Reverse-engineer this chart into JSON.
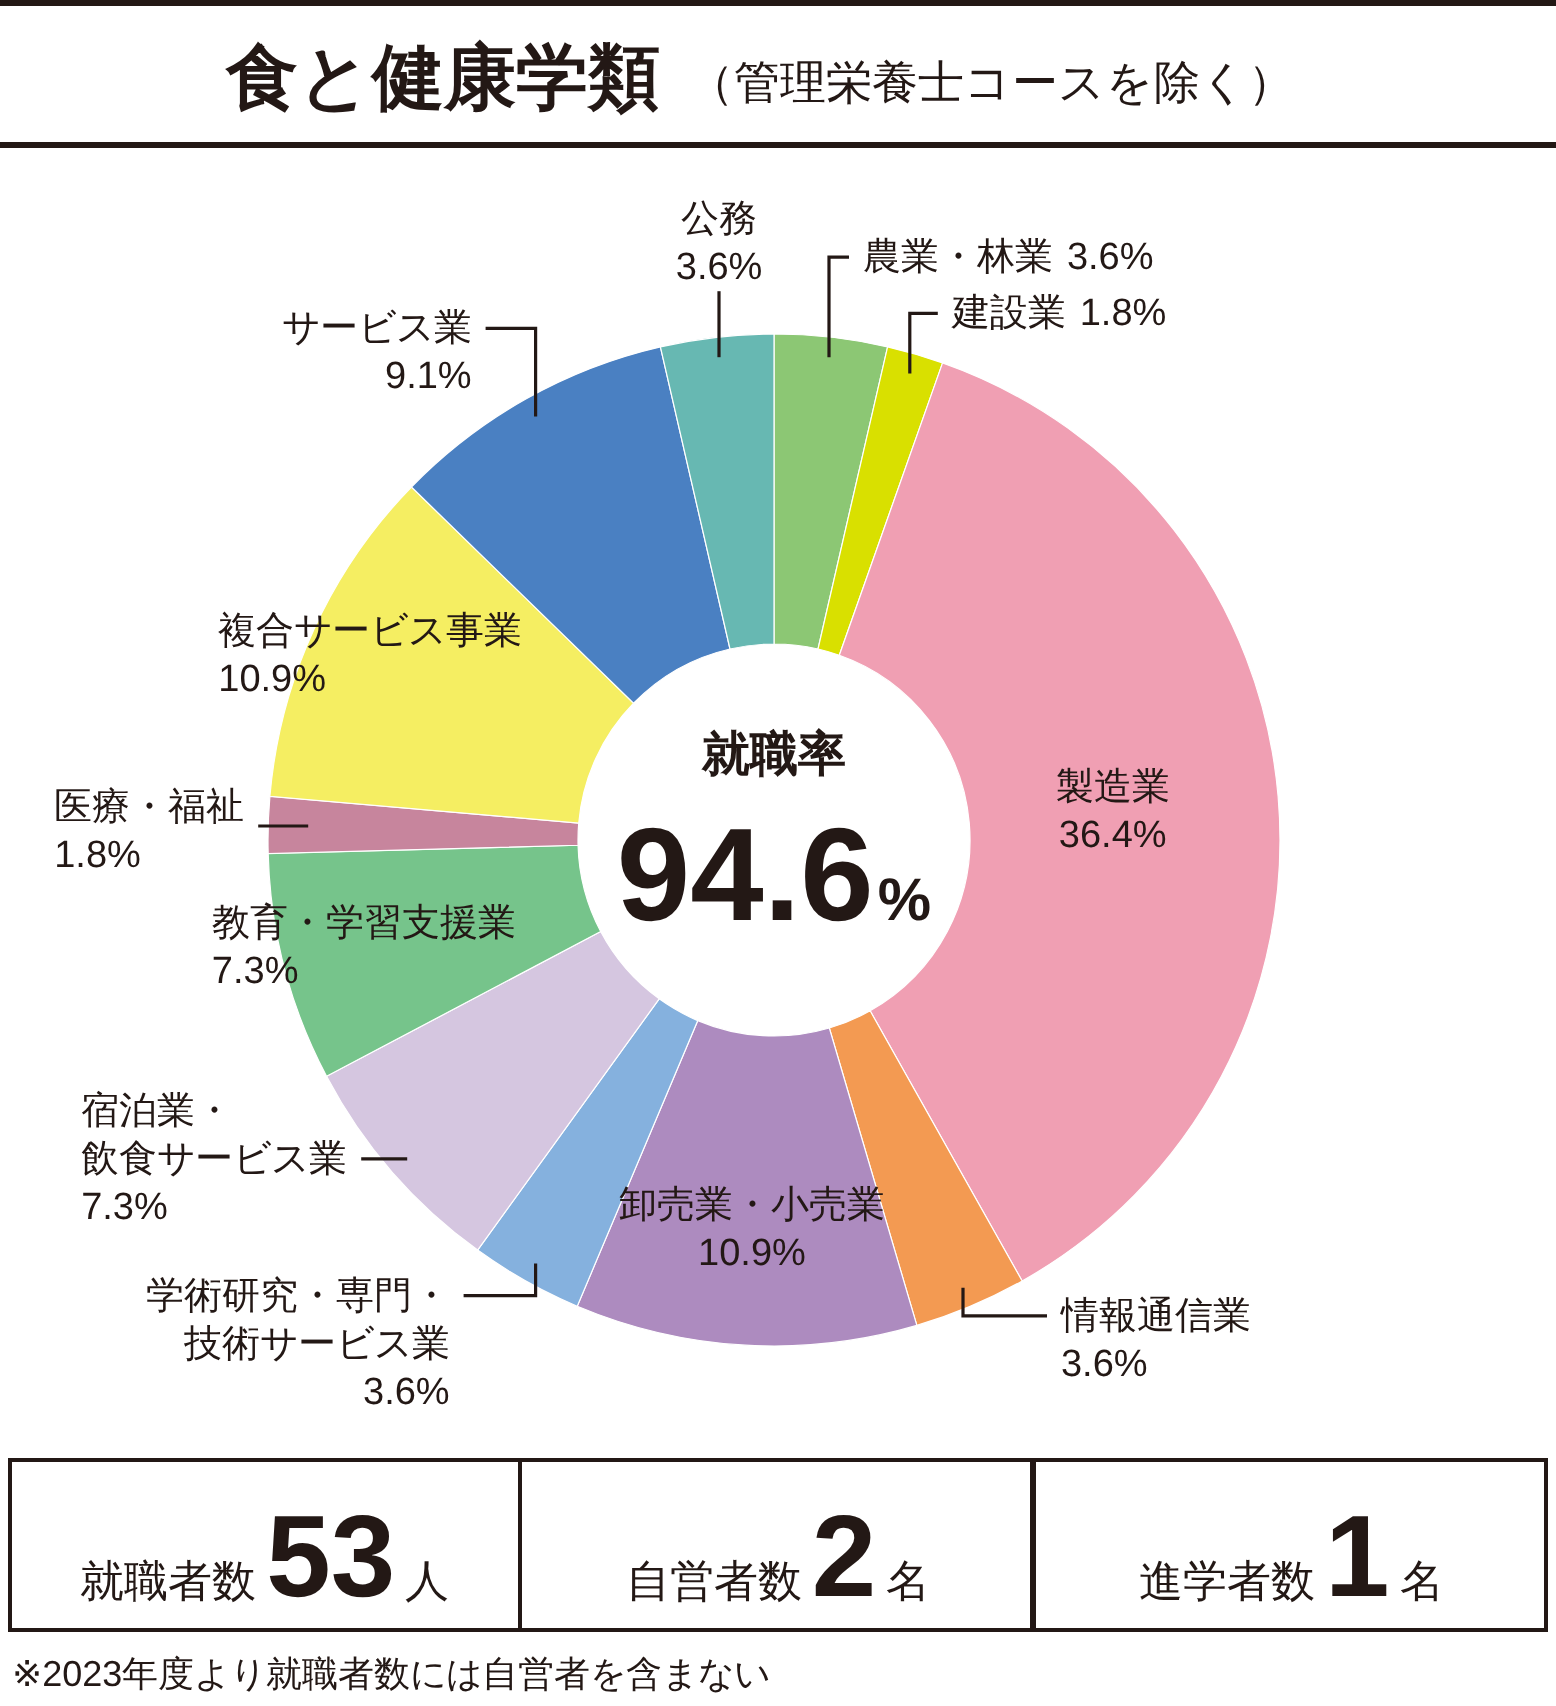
{
  "chart_data": {
    "type": "donut",
    "title": "食と健康学類",
    "subtitle": "（管理栄養士コースを除く）",
    "categories": [
      "農業・林業",
      "建設業",
      "製造業",
      "情報通信業",
      "卸売業・小売業",
      "学術研究・専門・技術サービス業",
      "宿泊業・飲食サービス業",
      "教育・学習支援業",
      "医療・福祉",
      "複合サービス事業",
      "サービス業",
      "公務"
    ],
    "values": [
      3.6,
      1.8,
      36.4,
      3.6,
      10.9,
      3.6,
      7.3,
      7.3,
      1.8,
      10.9,
      9.1,
      3.6
    ],
    "value_labels": [
      "3.6%",
      "1.8%",
      "36.4%",
      "3.6%",
      "10.9%",
      "3.6%",
      "7.3%",
      "7.3%",
      "1.8%",
      "10.9%",
      "9.1%",
      "3.6%"
    ],
    "colors": [
      "#8cc774",
      "#d9e000",
      "#f09fb3",
      "#f39a52",
      "#ad8bbf",
      "#85b1de",
      "#d5c6e0",
      "#76c48b",
      "#c7859d",
      "#f5ee62",
      "#4a80c2",
      "#67b8b2"
    ],
    "annotations": [
      "就職率",
      "94.6%",
      "就職者数53人",
      "自営者数2名",
      "進学者数1名",
      "※2023年度より就職者数には自営者を含まない"
    ]
  }
}
